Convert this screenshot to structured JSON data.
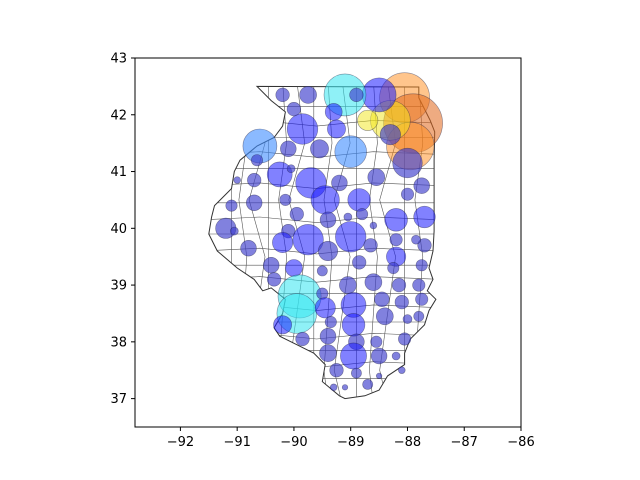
{
  "map": {
    "type": "bubble-map",
    "region": "Illinois",
    "axes": {
      "xlim": [
        -92.8,
        -86
      ],
      "ylim": [
        36.5,
        43
      ],
      "xticks": [
        -92,
        -91,
        -90,
        -89,
        -88,
        -87,
        -86
      ],
      "yticks": [
        37,
        38,
        39,
        40,
        41,
        42,
        43
      ],
      "xtick_labels": [
        "−92",
        "−91",
        "−90",
        "−89",
        "−88",
        "−87",
        "−86"
      ],
      "ytick_labels": [
        "37",
        "38",
        "39",
        "40",
        "41",
        "42",
        "43"
      ]
    },
    "colors": {
      "small": "#3d3dcc",
      "medium": "#1a1aff",
      "large_blue": "#3d8cff",
      "cyan": "#33e6f0",
      "yellow": "#f2e61a",
      "orange": "#ff8c1a",
      "dark_orange": "#e0661a",
      "border": "#333333"
    },
    "bubbles": [
      {
        "lon": -88.05,
        "lat": 42.3,
        "r": 0.44,
        "color": "orange"
      },
      {
        "lon": -87.9,
        "lat": 41.85,
        "r": 0.52,
        "color": "dark_orange"
      },
      {
        "lon": -87.95,
        "lat": 41.45,
        "r": 0.42,
        "color": "orange"
      },
      {
        "lon": -88.3,
        "lat": 41.9,
        "r": 0.35,
        "color": "yellow"
      },
      {
        "lon": -88.7,
        "lat": 41.9,
        "r": 0.18,
        "color": "yellow"
      },
      {
        "lon": -88.5,
        "lat": 42.35,
        "r": 0.3,
        "color": "medium"
      },
      {
        "lon": -89.1,
        "lat": 42.35,
        "r": 0.37,
        "color": "cyan"
      },
      {
        "lon": -89.3,
        "lat": 42.05,
        "r": 0.15,
        "color": "medium"
      },
      {
        "lon": -89.25,
        "lat": 41.75,
        "r": 0.16,
        "color": "medium"
      },
      {
        "lon": -90.6,
        "lat": 41.45,
        "r": 0.3,
        "color": "large_blue"
      },
      {
        "lon": -89.0,
        "lat": 41.35,
        "r": 0.28,
        "color": "large_blue"
      },
      {
        "lon": -88.3,
        "lat": 41.65,
        "r": 0.18,
        "color": "small"
      },
      {
        "lon": -88.0,
        "lat": 41.15,
        "r": 0.26,
        "color": "small"
      },
      {
        "lon": -89.85,
        "lat": 41.75,
        "r": 0.27,
        "color": "medium"
      },
      {
        "lon": -89.55,
        "lat": 41.4,
        "r": 0.16,
        "color": "small"
      },
      {
        "lon": -90.1,
        "lat": 41.4,
        "r": 0.14,
        "color": "small"
      },
      {
        "lon": -90.0,
        "lat": 42.1,
        "r": 0.12,
        "color": "small"
      },
      {
        "lon": -89.75,
        "lat": 42.35,
        "r": 0.15,
        "color": "small"
      },
      {
        "lon": -90.2,
        "lat": 42.35,
        "r": 0.12,
        "color": "small"
      },
      {
        "lon": -88.9,
        "lat": 42.35,
        "r": 0.12,
        "color": "small"
      },
      {
        "lon": -89.7,
        "lat": 40.8,
        "r": 0.27,
        "color": "medium"
      },
      {
        "lon": -90.25,
        "lat": 40.95,
        "r": 0.22,
        "color": "medium"
      },
      {
        "lon": -89.45,
        "lat": 40.5,
        "r": 0.25,
        "color": "medium"
      },
      {
        "lon": -88.85,
        "lat": 40.5,
        "r": 0.2,
        "color": "medium"
      },
      {
        "lon": -88.55,
        "lat": 40.9,
        "r": 0.15,
        "color": "small"
      },
      {
        "lon": -89.2,
        "lat": 40.8,
        "r": 0.14,
        "color": "small"
      },
      {
        "lon": -90.65,
        "lat": 41.2,
        "r": 0.1,
        "color": "small"
      },
      {
        "lon": -91.0,
        "lat": 40.85,
        "r": 0.06,
        "color": "small"
      },
      {
        "lon": -90.7,
        "lat": 40.85,
        "r": 0.12,
        "color": "small"
      },
      {
        "lon": -90.7,
        "lat": 40.45,
        "r": 0.14,
        "color": "small"
      },
      {
        "lon": -91.1,
        "lat": 40.4,
        "r": 0.1,
        "color": "small"
      },
      {
        "lon": -90.15,
        "lat": 40.5,
        "r": 0.1,
        "color": "small"
      },
      {
        "lon": -89.95,
        "lat": 40.25,
        "r": 0.12,
        "color": "small"
      },
      {
        "lon": -89.4,
        "lat": 40.15,
        "r": 0.14,
        "color": "small"
      },
      {
        "lon": -88.8,
        "lat": 40.25,
        "r": 0.1,
        "color": "small"
      },
      {
        "lon": -88.2,
        "lat": 40.15,
        "r": 0.2,
        "color": "medium"
      },
      {
        "lon": -87.7,
        "lat": 40.2,
        "r": 0.19,
        "color": "medium"
      },
      {
        "lon": -87.75,
        "lat": 40.75,
        "r": 0.14,
        "color": "small"
      },
      {
        "lon": -88.0,
        "lat": 40.6,
        "r": 0.11,
        "color": "small"
      },
      {
        "lon": -91.2,
        "lat": 40.0,
        "r": 0.18,
        "color": "small"
      },
      {
        "lon": -90.8,
        "lat": 39.65,
        "r": 0.14,
        "color": "small"
      },
      {
        "lon": -90.1,
        "lat": 39.95,
        "r": 0.12,
        "color": "small"
      },
      {
        "lon": -89.75,
        "lat": 39.8,
        "r": 0.27,
        "color": "medium"
      },
      {
        "lon": -90.2,
        "lat": 39.75,
        "r": 0.18,
        "color": "medium"
      },
      {
        "lon": -89.0,
        "lat": 39.85,
        "r": 0.27,
        "color": "medium"
      },
      {
        "lon": -89.4,
        "lat": 39.6,
        "r": 0.17,
        "color": "small"
      },
      {
        "lon": -88.65,
        "lat": 39.7,
        "r": 0.12,
        "color": "small"
      },
      {
        "lon": -88.2,
        "lat": 39.8,
        "r": 0.11,
        "color": "small"
      },
      {
        "lon": -88.2,
        "lat": 39.5,
        "r": 0.17,
        "color": "medium"
      },
      {
        "lon": -87.7,
        "lat": 39.7,
        "r": 0.12,
        "color": "small"
      },
      {
        "lon": -88.85,
        "lat": 39.4,
        "r": 0.12,
        "color": "small"
      },
      {
        "lon": -88.25,
        "lat": 39.3,
        "r": 0.1,
        "color": "small"
      },
      {
        "lon": -87.75,
        "lat": 39.35,
        "r": 0.1,
        "color": "small"
      },
      {
        "lon": -90.4,
        "lat": 39.35,
        "r": 0.14,
        "color": "small"
      },
      {
        "lon": -90.0,
        "lat": 39.3,
        "r": 0.15,
        "color": "medium"
      },
      {
        "lon": -89.5,
        "lat": 39.25,
        "r": 0.09,
        "color": "small"
      },
      {
        "lon": -90.35,
        "lat": 39.1,
        "r": 0.12,
        "color": "small"
      },
      {
        "lon": -89.05,
        "lat": 39.0,
        "r": 0.15,
        "color": "small"
      },
      {
        "lon": -88.6,
        "lat": 39.05,
        "r": 0.15,
        "color": "small"
      },
      {
        "lon": -88.15,
        "lat": 39.0,
        "r": 0.12,
        "color": "small"
      },
      {
        "lon": -87.8,
        "lat": 39.0,
        "r": 0.11,
        "color": "small"
      },
      {
        "lon": -89.9,
        "lat": 38.8,
        "r": 0.38,
        "color": "cyan"
      },
      {
        "lon": -89.95,
        "lat": 38.5,
        "r": 0.35,
        "color": "cyan"
      },
      {
        "lon": -89.5,
        "lat": 38.85,
        "r": 0.1,
        "color": "small"
      },
      {
        "lon": -89.45,
        "lat": 38.6,
        "r": 0.18,
        "color": "medium"
      },
      {
        "lon": -88.95,
        "lat": 38.65,
        "r": 0.22,
        "color": "medium"
      },
      {
        "lon": -88.45,
        "lat": 38.75,
        "r": 0.13,
        "color": "small"
      },
      {
        "lon": -88.1,
        "lat": 38.7,
        "r": 0.12,
        "color": "small"
      },
      {
        "lon": -87.75,
        "lat": 38.75,
        "r": 0.11,
        "color": "small"
      },
      {
        "lon": -88.4,
        "lat": 38.45,
        "r": 0.15,
        "color": "small"
      },
      {
        "lon": -88.0,
        "lat": 38.4,
        "r": 0.08,
        "color": "small"
      },
      {
        "lon": -87.8,
        "lat": 38.45,
        "r": 0.09,
        "color": "small"
      },
      {
        "lon": -89.35,
        "lat": 38.35,
        "r": 0.1,
        "color": "small"
      },
      {
        "lon": -88.95,
        "lat": 38.3,
        "r": 0.2,
        "color": "medium"
      },
      {
        "lon": -90.2,
        "lat": 38.3,
        "r": 0.16,
        "color": "medium"
      },
      {
        "lon": -89.4,
        "lat": 38.1,
        "r": 0.14,
        "color": "small"
      },
      {
        "lon": -89.85,
        "lat": 38.05,
        "r": 0.12,
        "color": "small"
      },
      {
        "lon": -88.9,
        "lat": 38.0,
        "r": 0.14,
        "color": "small"
      },
      {
        "lon": -88.55,
        "lat": 38.0,
        "r": 0.1,
        "color": "small"
      },
      {
        "lon": -88.05,
        "lat": 38.05,
        "r": 0.11,
        "color": "small"
      },
      {
        "lon": -89.4,
        "lat": 37.8,
        "r": 0.15,
        "color": "small"
      },
      {
        "lon": -88.95,
        "lat": 37.75,
        "r": 0.23,
        "color": "medium"
      },
      {
        "lon": -88.5,
        "lat": 37.75,
        "r": 0.14,
        "color": "small"
      },
      {
        "lon": -88.2,
        "lat": 37.75,
        "r": 0.07,
        "color": "small"
      },
      {
        "lon": -88.1,
        "lat": 37.5,
        "r": 0.06,
        "color": "small"
      },
      {
        "lon": -89.25,
        "lat": 37.5,
        "r": 0.12,
        "color": "small"
      },
      {
        "lon": -88.9,
        "lat": 37.45,
        "r": 0.09,
        "color": "small"
      },
      {
        "lon": -88.5,
        "lat": 37.4,
        "r": 0.05,
        "color": "small"
      },
      {
        "lon": -89.3,
        "lat": 37.2,
        "r": 0.06,
        "color": "small"
      },
      {
        "lon": -89.1,
        "lat": 37.2,
        "r": 0.05,
        "color": "small"
      },
      {
        "lon": -88.7,
        "lat": 37.25,
        "r": 0.09,
        "color": "small"
      },
      {
        "lon": -87.85,
        "lat": 39.8,
        "r": 0.08,
        "color": "small"
      },
      {
        "lon": -88.6,
        "lat": 40.05,
        "r": 0.06,
        "color": "small"
      },
      {
        "lon": -90.05,
        "lat": 41.05,
        "r": 0.07,
        "color": "small"
      },
      {
        "lon": -89.05,
        "lat": 40.2,
        "r": 0.07,
        "color": "small"
      },
      {
        "lon": -91.05,
        "lat": 39.95,
        "r": 0.07,
        "color": "small"
      }
    ],
    "state_outline": [
      [
        -90.65,
        42.5
      ],
      [
        -87.8,
        42.49
      ],
      [
        -87.8,
        42.3
      ],
      [
        -87.6,
        41.9
      ],
      [
        -87.52,
        41.7
      ],
      [
        -87.53,
        41.2
      ],
      [
        -87.53,
        40.5
      ],
      [
        -87.53,
        39.95
      ],
      [
        -87.55,
        39.6
      ],
      [
        -87.62,
        39.3
      ],
      [
        -87.55,
        39.1
      ],
      [
        -87.65,
        38.9
      ],
      [
        -87.5,
        38.75
      ],
      [
        -87.62,
        38.55
      ],
      [
        -87.7,
        38.3
      ],
      [
        -87.95,
        38.05
      ],
      [
        -88.05,
        37.8
      ],
      [
        -88.05,
        37.6
      ],
      [
        -88.35,
        37.4
      ],
      [
        -88.5,
        37.15
      ],
      [
        -88.75,
        37.05
      ],
      [
        -89.1,
        37.0
      ],
      [
        -89.2,
        37.05
      ],
      [
        -89.5,
        37.3
      ],
      [
        -89.45,
        37.6
      ],
      [
        -89.65,
        37.8
      ],
      [
        -89.95,
        37.95
      ],
      [
        -90.25,
        38.1
      ],
      [
        -90.35,
        38.25
      ],
      [
        -90.2,
        38.5
      ],
      [
        -90.15,
        38.75
      ],
      [
        -90.4,
        38.95
      ],
      [
        -90.55,
        38.9
      ],
      [
        -90.7,
        39.1
      ],
      [
        -91.0,
        39.3
      ],
      [
        -91.35,
        39.6
      ],
      [
        -91.5,
        39.9
      ],
      [
        -91.45,
        40.2
      ],
      [
        -91.4,
        40.4
      ],
      [
        -91.1,
        40.7
      ],
      [
        -91.05,
        41.0
      ],
      [
        -90.95,
        41.2
      ],
      [
        -90.65,
        41.45
      ],
      [
        -90.35,
        41.6
      ],
      [
        -90.2,
        41.8
      ],
      [
        -90.15,
        42.05
      ],
      [
        -90.4,
        42.25
      ],
      [
        -90.65,
        42.5
      ]
    ]
  }
}
